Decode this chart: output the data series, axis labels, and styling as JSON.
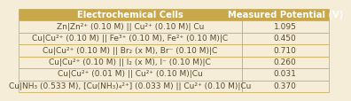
{
  "title_left": "Electrochemical Cells",
  "title_right": "Measured Potential (V)",
  "rows": [
    [
      "Zn|Zn²⁺ (0.10 M) || Cu²⁺ (0.10 M)| Cu",
      "1.095"
    ],
    [
      "Cu|Cu²⁺ (0.10 M) || Fe³⁺ (0.10 M), Fe²⁺ (0.10 M)|C",
      "0.450"
    ],
    [
      "Cu|Cu²⁺ (0.10 M) || Br₂ (x M), Br⁻ (0.10 M)|C",
      "0.710"
    ],
    [
      "Cu|Cu²⁺ (0.10 M) || I₂ (x M), I⁻ (0.10 M)|C",
      "0.260"
    ],
    [
      "Cu|Cu²⁺ (0.01 M) || Cu²⁺ (0.10 M)|Cu",
      "0.031"
    ],
    [
      "Cu|NH₃ (0.533 M), [Cu(NH₃)₄²⁺] (0.033 M) || Cu²⁺ (0.10 M)|Cu",
      "0.370"
    ]
  ],
  "header_bg": "#C8A84B",
  "header_fg": "#FFFFFF",
  "row_bg": "#F5EDD8",
  "row_fg": "#5A4A2A",
  "border_color": "#C8A84B",
  "col_split": 0.72,
  "header_fontsize": 7.2,
  "row_fontsize": 6.5
}
